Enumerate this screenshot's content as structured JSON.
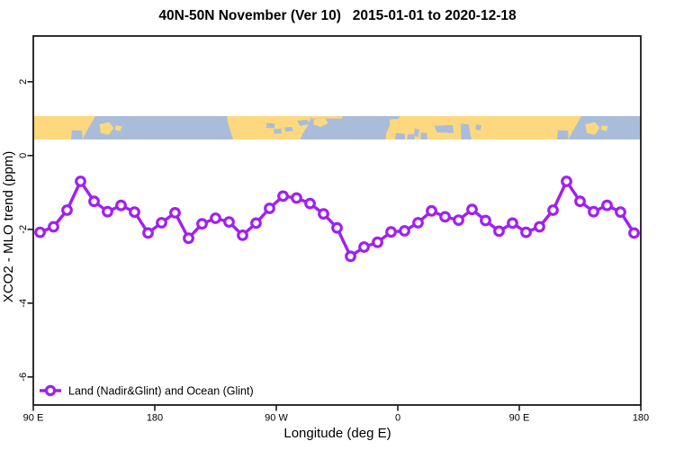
{
  "title": "40N-50N November (Ver 10)   2015-01-01 to 2020-12-18",
  "axes": {
    "x": {
      "label": "Longitude (deg E)",
      "ticks": [
        {
          "deg": 90,
          "label": "90 E"
        },
        {
          "deg": 180,
          "label": "180"
        },
        {
          "deg": 270,
          "label": "90 W"
        },
        {
          "deg": 360,
          "label": "0"
        },
        {
          "deg": 450,
          "label": "90 E"
        },
        {
          "deg": 540,
          "label": "180"
        }
      ]
    },
    "y": {
      "label": "XCO2 - MLO trend (ppm)",
      "ticks": [
        {
          "v": 2,
          "label": "2"
        },
        {
          "v": 0,
          "label": "0"
        },
        {
          "v": -2,
          "label": "-2"
        },
        {
          "v": -4,
          "label": "-4"
        },
        {
          "v": -6,
          "label": "-6"
        }
      ]
    }
  },
  "legend": {
    "label": "Land (Nadir&Glint) and Ocean (Glint)"
  },
  "colors": {
    "line": "#A020F0",
    "marker_fill": "#FFFFFF",
    "land": "#FDD87E",
    "ocean": "#A9BDDB",
    "axis": "#1A1A1A",
    "background": "#FFFFFF"
  },
  "chart_data": {
    "type": "line",
    "title": "40N-50N November (Ver 10)  2015-01-01 to 2020-12-18",
    "xlabel": "Longitude (deg E)",
    "ylabel": "XCO2 - MLO trend (ppm)",
    "xlim": [
      90,
      540
    ],
    "ylim": [
      -6.76,
      3.24
    ],
    "grid": false,
    "legend_position": "bottom-left",
    "x_tick_labels": [
      "90 E",
      "180",
      "90 W",
      "0",
      "90 E",
      "180"
    ],
    "y_ticks": [
      2,
      0,
      -2,
      -4,
      -6
    ],
    "x": [
      95,
      105,
      115,
      125,
      135,
      145,
      155,
      165,
      175,
      185,
      195,
      205,
      215,
      225,
      235,
      245,
      255,
      265,
      275,
      285,
      295,
      305,
      315,
      325,
      335,
      345,
      355,
      365,
      375,
      385,
      395,
      405,
      415,
      425,
      435,
      445,
      455,
      465,
      475,
      485,
      495,
      505,
      515,
      525,
      535
    ],
    "series": [
      {
        "name": "Land (Nadir&Glint) and Ocean (Glint)",
        "color": "#A020F0",
        "marker": "open-circle",
        "values": [
          -2.08,
          -1.93,
          -1.48,
          -0.7,
          -1.24,
          -1.52,
          -1.35,
          -1.53,
          -2.1,
          -1.82,
          -1.55,
          -2.24,
          -1.85,
          -1.7,
          -1.8,
          -2.16,
          -1.83,
          -1.43,
          -1.1,
          -1.15,
          -1.3,
          -1.58,
          -1.96,
          -2.73,
          -2.48,
          -2.35,
          -2.07,
          -2.04,
          -1.82,
          -1.5,
          -1.66,
          -1.75,
          -1.46,
          -1.76,
          -2.05,
          -1.83,
          -2.08,
          -1.93,
          -1.48,
          -0.7,
          -1.24,
          -1.52,
          -1.35,
          -1.53,
          -2.1
        ]
      }
    ],
    "map_strip_y_range": [
      0.47,
      1.1
    ]
  },
  "map_strip": {
    "land": [
      {
        "name": "asia-west",
        "pts": [
          [
            90,
            0
          ],
          [
            136,
            0
          ],
          [
            133.5,
            0.25
          ],
          [
            131,
            0.5
          ],
          [
            128.5,
            0.75
          ],
          [
            126.5,
            1
          ],
          [
            90,
            1
          ]
        ]
      },
      {
        "name": "hokkaido",
        "pts": [
          [
            139,
            0.35
          ],
          [
            146,
            0.26
          ],
          [
            149.5,
            0.5
          ],
          [
            146,
            0.8
          ],
          [
            140,
            0.72
          ]
        ]
      },
      {
        "name": "sakhalin",
        "pts": [
          [
            151,
            0.4
          ],
          [
            155.5,
            0.44
          ],
          [
            154.5,
            0.64
          ],
          [
            150.5,
            0.58
          ]
        ]
      },
      {
        "name": "north-america",
        "pts": [
          [
            233.5,
            0
          ],
          [
            296,
            0
          ],
          [
            293.5,
            0.4
          ],
          [
            290,
            0.7
          ],
          [
            287.5,
            1
          ],
          [
            238,
            1
          ],
          [
            235.5,
            0.55
          ],
          [
            234,
            0.25
          ]
        ]
      },
      {
        "name": "labrador-coast",
        "pts": [
          [
            296,
            0
          ],
          [
            319,
            0
          ],
          [
            319,
            0.1
          ],
          [
            296,
            0.1
          ]
        ]
      },
      {
        "name": "newfoundland",
        "pts": [
          [
            298,
            0.13
          ],
          [
            306,
            0.1
          ],
          [
            308.5,
            0.3
          ],
          [
            303,
            0.46
          ],
          [
            297.5,
            0.36
          ]
        ]
      },
      {
        "name": "eurasia",
        "pts": [
          [
            356,
            0
          ],
          [
            496,
            0
          ],
          [
            493.5,
            0.25
          ],
          [
            491,
            0.5
          ],
          [
            488.5,
            0.75
          ],
          [
            486.5,
            1
          ],
          [
            351,
            1
          ],
          [
            351.5,
            0.72
          ],
          [
            354,
            0.4
          ],
          [
            354,
            0.15
          ]
        ]
      },
      {
        "name": "hokkaido-wrap",
        "pts": [
          [
            499,
            0.35
          ],
          [
            506,
            0.26
          ],
          [
            509.5,
            0.5
          ],
          [
            506,
            0.8
          ],
          [
            500,
            0.72
          ]
        ]
      },
      {
        "name": "sakhalin-wrap",
        "pts": [
          [
            511,
            0.4
          ],
          [
            515.5,
            0.44
          ],
          [
            514.5,
            0.64
          ],
          [
            510.5,
            0.58
          ]
        ]
      }
    ],
    "water": [
      {
        "name": "sea-of-japan",
        "pts": [
          [
            118.5,
            0.6
          ],
          [
            126,
            0.62
          ],
          [
            126.5,
            1
          ],
          [
            118,
            1
          ]
        ]
      },
      {
        "name": "lake-superior",
        "pts": [
          [
            263,
            0.3
          ],
          [
            269,
            0.32
          ],
          [
            268.5,
            0.52
          ],
          [
            262.5,
            0.5
          ]
        ]
      },
      {
        "name": "lake-huron-michigan",
        "pts": [
          [
            268,
            0.56
          ],
          [
            273.5,
            0.54
          ],
          [
            274,
            0.74
          ],
          [
            268.5,
            0.76
          ]
        ]
      },
      {
        "name": "lake-erie-ontario",
        "pts": [
          [
            276,
            0.48
          ],
          [
            281.5,
            0.46
          ],
          [
            282.5,
            0.64
          ],
          [
            277,
            0.66
          ]
        ]
      },
      {
        "name": "gulf-st-lawrence",
        "pts": [
          [
            285.5,
            0.2
          ],
          [
            293,
            0.14
          ],
          [
            295,
            0.34
          ],
          [
            287.5,
            0.42
          ]
        ]
      },
      {
        "name": "english-channel",
        "pts": [
          [
            353.5,
            0
          ],
          [
            362,
            0
          ],
          [
            360,
            0.12
          ],
          [
            353.5,
            0.14
          ]
        ]
      },
      {
        "name": "west-mediterranean",
        "pts": [
          [
            358.5,
            0.72
          ],
          [
            365,
            0.75
          ],
          [
            365.5,
            1
          ],
          [
            358,
            1
          ]
        ]
      },
      {
        "name": "tyrrhenian-sea",
        "pts": [
          [
            367.5,
            0.78
          ],
          [
            372,
            0.78
          ],
          [
            372.5,
            1
          ],
          [
            367,
            1
          ]
        ]
      },
      {
        "name": "adriatic-sea",
        "pts": [
          [
            372.5,
            0.52
          ],
          [
            376,
            0.58
          ],
          [
            375,
            0.9
          ],
          [
            372,
            0.84
          ]
        ]
      },
      {
        "name": "aegean-sea",
        "pts": [
          [
            377,
            0.7
          ],
          [
            381.5,
            0.72
          ],
          [
            382,
            1
          ],
          [
            377,
            1
          ]
        ]
      },
      {
        "name": "black-sea",
        "pts": [
          [
            387,
            0.42
          ],
          [
            400.5,
            0.38
          ],
          [
            401.5,
            0.72
          ],
          [
            389,
            0.7
          ]
        ]
      },
      {
        "name": "caspian-sea",
        "pts": [
          [
            406.5,
            0.32
          ],
          [
            412.5,
            0.36
          ],
          [
            414.5,
            1
          ],
          [
            407,
            1
          ]
        ]
      },
      {
        "name": "aral-sea",
        "pts": [
          [
            418,
            0.35
          ],
          [
            422,
            0.4
          ],
          [
            421,
            0.62
          ],
          [
            417.5,
            0.56
          ]
        ]
      },
      {
        "name": "sea-of-japan-wrap",
        "pts": [
          [
            478.5,
            0.6
          ],
          [
            486,
            0.62
          ],
          [
            486.5,
            1
          ],
          [
            478,
            1
          ]
        ]
      }
    ]
  }
}
